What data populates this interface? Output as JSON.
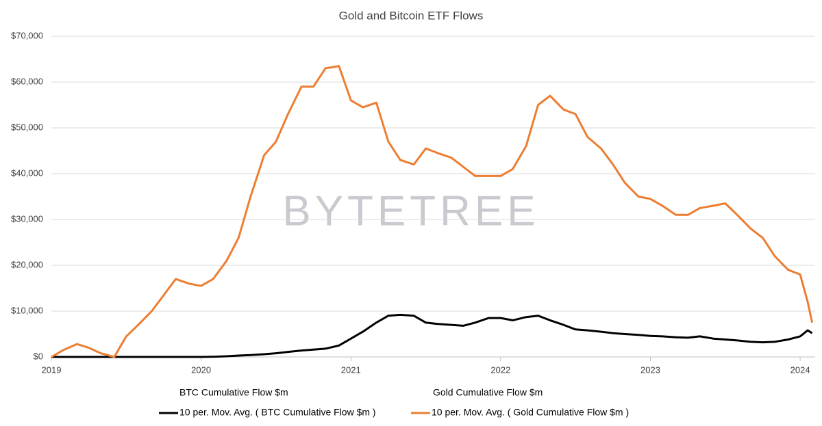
{
  "chart_data": {
    "type": "line",
    "title": "Gold and Bitcoin ETF Flows",
    "watermark": "BYTETREE",
    "x": [
      2019,
      2019.08,
      2019.17,
      2019.25,
      2019.33,
      2019.42,
      2019.5,
      2019.58,
      2019.67,
      2019.75,
      2019.83,
      2019.92,
      2020,
      2020.08,
      2020.17,
      2020.25,
      2020.33,
      2020.42,
      2020.5,
      2020.58,
      2020.67,
      2020.75,
      2020.83,
      2020.92,
      2021,
      2021.08,
      2021.17,
      2021.25,
      2021.33,
      2021.42,
      2021.5,
      2021.58,
      2021.67,
      2021.75,
      2021.83,
      2021.92,
      2022,
      2022.08,
      2022.17,
      2022.25,
      2022.33,
      2022.42,
      2022.5,
      2022.58,
      2022.67,
      2022.75,
      2022.83,
      2022.92,
      2023,
      2023.08,
      2023.17,
      2023.25,
      2023.33,
      2023.42,
      2023.5,
      2023.58,
      2023.67,
      2023.75,
      2023.83,
      2023.92,
      2024,
      2024.05,
      2024.08
    ],
    "series": [
      {
        "name": "BTC Cumulative Flow $m",
        "color": "#ffffff",
        "width": 1,
        "values": [
          0,
          0,
          0,
          0,
          0,
          0,
          0,
          0,
          0,
          0,
          0,
          0,
          0,
          50,
          150,
          300,
          400,
          600,
          800,
          1100,
          1400,
          1600,
          1800,
          2500,
          4000,
          5500,
          7500,
          9000,
          9200,
          9000,
          7500,
          7200,
          7000,
          6800,
          7500,
          8500,
          8500,
          8000,
          8700,
          9000,
          8000,
          7000,
          6000,
          5800,
          5500,
          5200,
          5000,
          4800,
          4600,
          4500,
          4300,
          4200,
          4500,
          4000,
          3800,
          3600,
          3300,
          3200,
          3300,
          3800,
          4500,
          5800,
          5200
        ]
      },
      {
        "name": "Gold Cumulative Flow $m",
        "color": "#ffffff",
        "width": 1,
        "values": [
          0,
          1500,
          2800,
          2000,
          800,
          0,
          4500,
          7000,
          10000,
          13500,
          17000,
          16000,
          15500,
          17000,
          21000,
          26000,
          35000,
          44000,
          47000,
          53000,
          59000,
          59000,
          63000,
          63500,
          56000,
          54500,
          55500,
          47000,
          43000,
          42000,
          45500,
          44500,
          43500,
          41500,
          39500,
          39500,
          39500,
          41000,
          46000,
          55000,
          57000,
          54000,
          53000,
          48000,
          45500,
          42000,
          38000,
          35000,
          34500,
          33000,
          31000,
          31000,
          32500,
          33000,
          33500,
          31000,
          28000,
          26000,
          22000,
          19000,
          18000,
          12000,
          7500
        ]
      },
      {
        "name": "10 per. Mov. Avg. ( BTC Cumulative Flow $m )",
        "color": "#000000",
        "width": 3,
        "values": [
          0,
          0,
          0,
          0,
          0,
          0,
          0,
          0,
          0,
          0,
          0,
          0,
          0,
          50,
          150,
          300,
          400,
          600,
          800,
          1100,
          1400,
          1600,
          1800,
          2500,
          4000,
          5500,
          7500,
          9000,
          9200,
          9000,
          7500,
          7200,
          7000,
          6800,
          7500,
          8500,
          8500,
          8000,
          8700,
          9000,
          8000,
          7000,
          6000,
          5800,
          5500,
          5200,
          5000,
          4800,
          4600,
          4500,
          4300,
          4200,
          4500,
          4000,
          3800,
          3600,
          3300,
          3200,
          3300,
          3800,
          4500,
          5800,
          5200
        ]
      },
      {
        "name": "10 per. Mov. Avg. ( Gold Cumulative Flow $m )",
        "color": "#ed7d31",
        "width": 3,
        "values": [
          0,
          1500,
          2800,
          2000,
          800,
          0,
          4500,
          7000,
          10000,
          13500,
          17000,
          16000,
          15500,
          17000,
          21000,
          26000,
          35000,
          44000,
          47000,
          53000,
          59000,
          59000,
          63000,
          63500,
          56000,
          54500,
          55500,
          47000,
          43000,
          42000,
          45500,
          44500,
          43500,
          41500,
          39500,
          39500,
          39500,
          41000,
          46000,
          55000,
          57000,
          54000,
          53000,
          48000,
          45500,
          42000,
          38000,
          35000,
          34500,
          33000,
          31000,
          31000,
          32500,
          33000,
          33500,
          31000,
          28000,
          26000,
          22000,
          19000,
          18000,
          12000,
          7500
        ]
      }
    ],
    "xlim": [
      2019,
      2024.1
    ],
    "xticks": [
      2019,
      2020,
      2021,
      2022,
      2023,
      2024
    ],
    "ylim": [
      0,
      70000
    ],
    "yticks": [
      {
        "value": 0,
        "label": "$0"
      },
      {
        "value": 10000,
        "label": "$10,000"
      },
      {
        "value": 20000,
        "label": "$20,000"
      },
      {
        "value": 30000,
        "label": "$30,000"
      },
      {
        "value": 40000,
        "label": "$40,000"
      },
      {
        "value": 50000,
        "label": "$50,000"
      },
      {
        "value": 60000,
        "label": "$60,000"
      },
      {
        "value": 70000,
        "label": "$70,000"
      }
    ],
    "grid": true,
    "legend": "bottom"
  }
}
